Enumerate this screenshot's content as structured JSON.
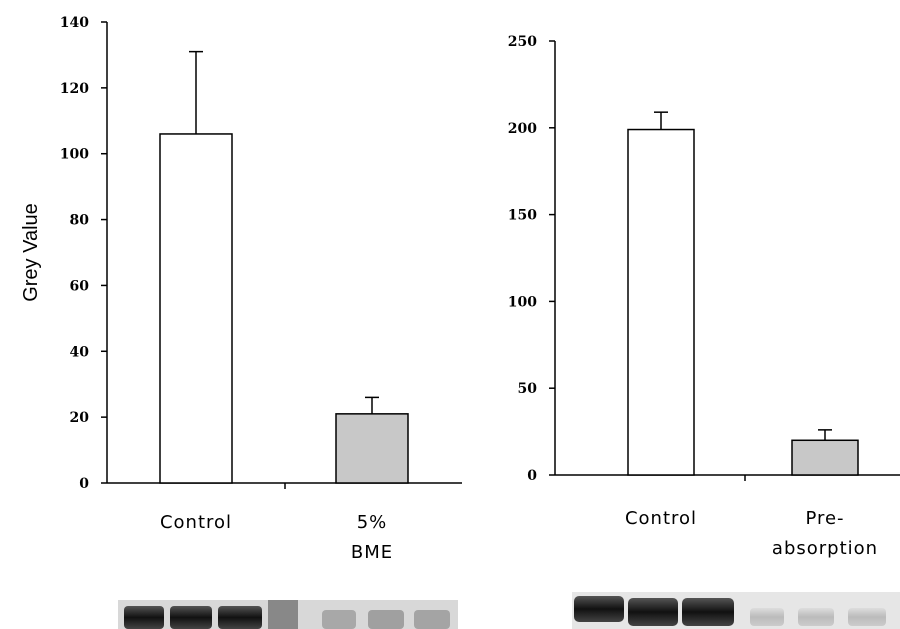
{
  "chart_data": [
    {
      "type": "bar",
      "y_label": "Grey Value",
      "categories": [
        "Control",
        "5% BME"
      ],
      "values": [
        106,
        21
      ],
      "errors": [
        25,
        5
      ],
      "colors": [
        "#ffffff",
        "#c8c8c8"
      ],
      "ylim": [
        0,
        140
      ],
      "yticks": [
        0,
        20,
        40,
        60,
        80,
        100,
        120,
        140
      ]
    },
    {
      "type": "bar",
      "categories": [
        "Control",
        "Pre- absorption"
      ],
      "values": [
        199,
        20
      ],
      "errors": [
        10,
        6
      ],
      "colors": [
        "#ffffff",
        "#c8c8c8"
      ],
      "ylim": [
        0,
        250
      ],
      "yticks": [
        0,
        50,
        100,
        150,
        200,
        250
      ]
    }
  ]
}
